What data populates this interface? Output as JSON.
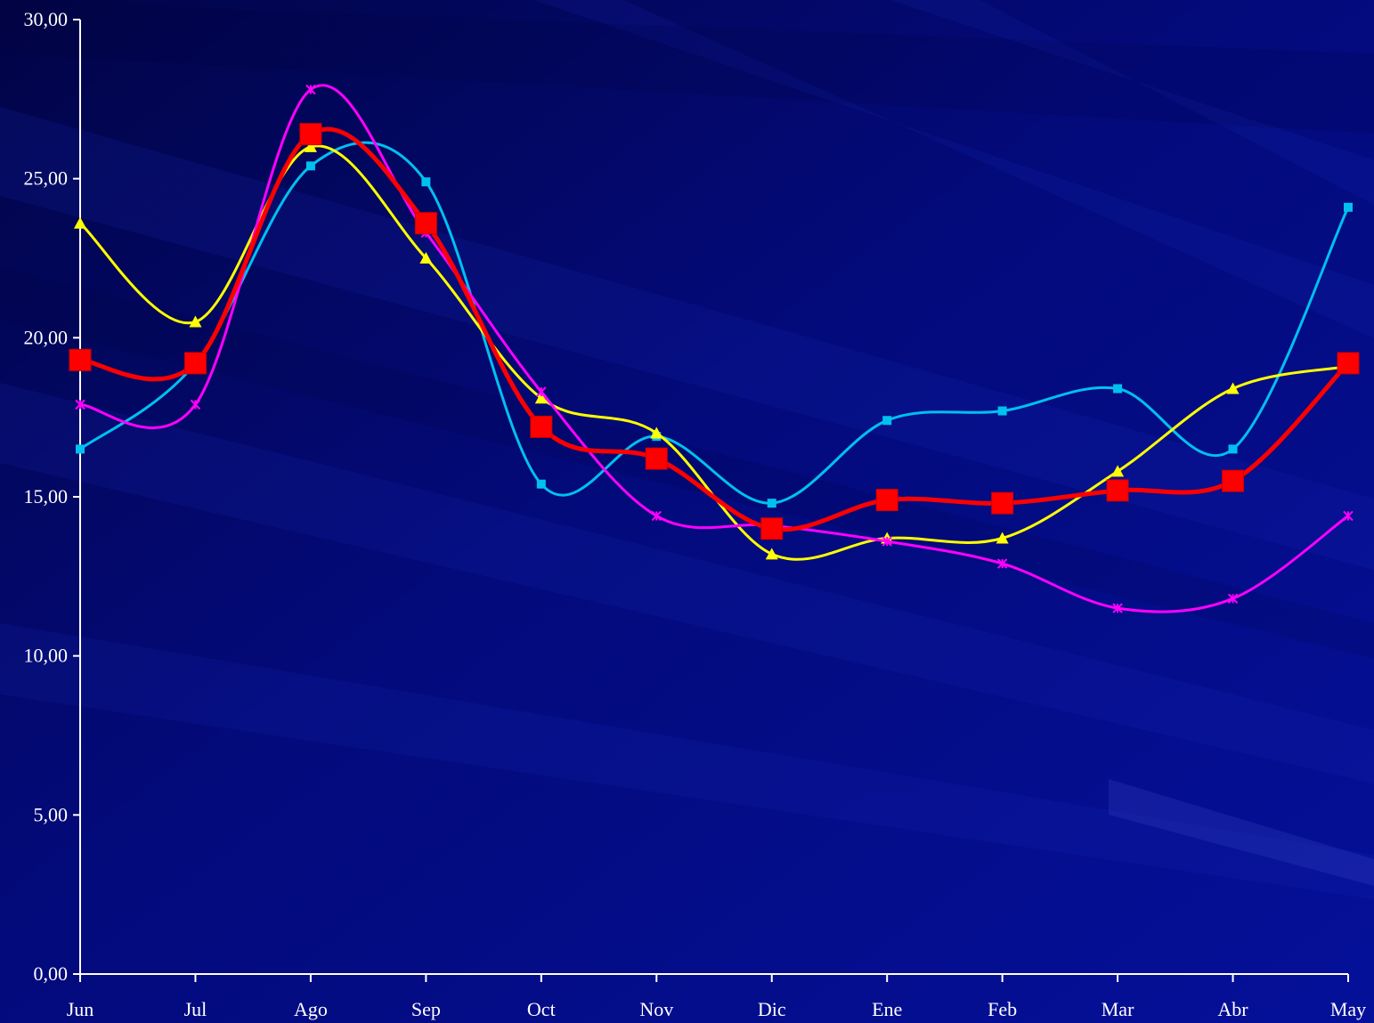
{
  "chart_data": {
    "type": "line",
    "title": "",
    "xlabel": "",
    "ylabel": "",
    "categories": [
      "Jun",
      "Jul",
      "Ago",
      "Sep",
      "Oct",
      "Nov",
      "Dic",
      "Ene",
      "Feb",
      "Mar",
      "Abr",
      "May"
    ],
    "ylim": [
      0,
      30
    ],
    "yticks": [
      "0,00",
      "5,00",
      "10,00",
      "15,00",
      "20,00",
      "25,00",
      "30,00"
    ],
    "ytick_values": [
      0,
      5,
      10,
      15,
      20,
      25,
      30
    ],
    "grid": false,
    "legend": "none",
    "smooth": true,
    "series": [
      {
        "color": "#00c0f0",
        "marker": "square-small",
        "values": [
          16.5,
          19.2,
          25.4,
          24.9,
          15.4,
          16.9,
          14.8,
          17.4,
          17.7,
          18.4,
          16.5,
          24.1
        ]
      },
      {
        "color": "#ffff00",
        "marker": "triangle",
        "values": [
          23.6,
          20.5,
          26.0,
          22.5,
          18.1,
          17.0,
          13.2,
          13.7,
          13.7,
          15.8,
          18.4,
          19.1
        ]
      },
      {
        "color": "#ff00ff",
        "marker": "star",
        "values": [
          17.9,
          17.9,
          27.8,
          23.3,
          18.3,
          14.4,
          14.1,
          13.6,
          12.9,
          11.5,
          11.8,
          14.4
        ]
      },
      {
        "color": "#ff0000",
        "marker": "square-large",
        "values": [
          19.3,
          19.2,
          26.4,
          23.6,
          17.2,
          16.2,
          14.0,
          14.9,
          14.8,
          15.2,
          15.5,
          19.2
        ]
      }
    ]
  }
}
